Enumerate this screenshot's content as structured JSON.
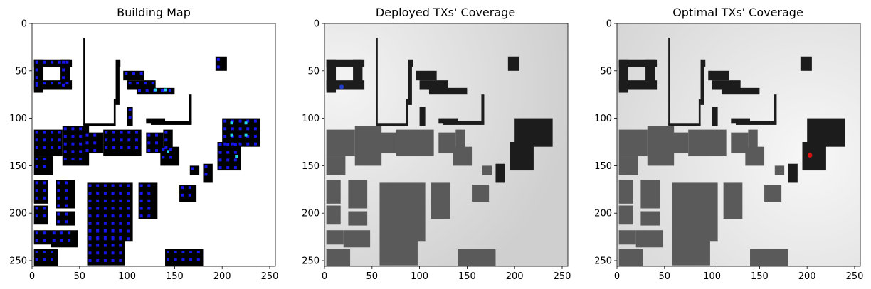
{
  "chart_data": [
    {
      "type": "heatmap",
      "title": "Building Map",
      "xlim": [
        0,
        256
      ],
      "ylim": [
        256,
        0
      ],
      "xticks": [
        0,
        50,
        100,
        150,
        200,
        250
      ],
      "yticks": [
        0,
        50,
        100,
        150,
        200,
        250
      ],
      "colors": {
        "background": "#ffffff",
        "building": "#000000",
        "tx_candidate": "#1515ee",
        "tx_highlight": "#27d7e8"
      },
      "grid": false
    },
    {
      "type": "heatmap",
      "title": "Deployed TXs' Coverage",
      "xlim": [
        0,
        256
      ],
      "ylim": [
        256,
        0
      ],
      "xticks": [
        0,
        50,
        100,
        150,
        200,
        250
      ],
      "yticks": [
        0,
        50,
        100,
        150,
        200,
        250
      ],
      "colors": {
        "coverage_high": "#f4f4f4",
        "coverage_low": "#cfcfcf",
        "building": "#1c1c1c",
        "tx_marker": "#1f3cc8"
      },
      "tx_marker": {
        "x": 18,
        "y": 67
      },
      "grid": false
    },
    {
      "type": "heatmap",
      "title": "Optimal TXs' Coverage",
      "xlim": [
        0,
        256
      ],
      "ylim": [
        256,
        0
      ],
      "xticks": [
        0,
        50,
        100,
        150,
        200,
        250
      ],
      "yticks": [
        0,
        50,
        100,
        150,
        200,
        250
      ],
      "colors": {
        "coverage_high": "#f7f7f7",
        "coverage_low": "#d6d6d6",
        "building": "#1c1c1c",
        "tx_marker": "#e01010"
      },
      "tx_marker": {
        "x": 203,
        "y": 139
      },
      "grid": false
    }
  ]
}
